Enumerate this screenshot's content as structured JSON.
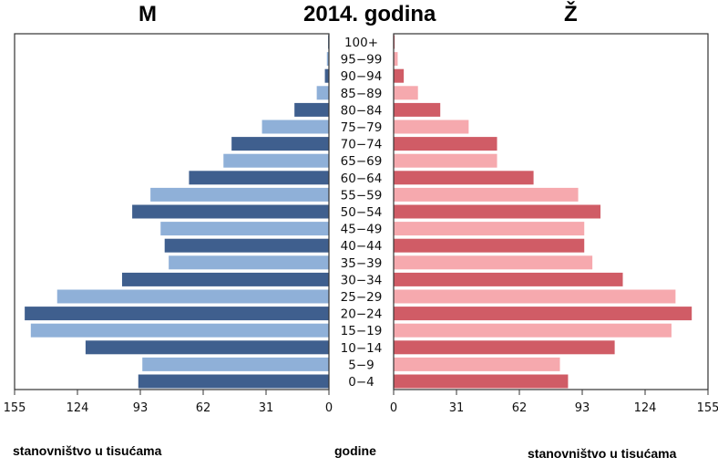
{
  "chart_data": {
    "type": "bar",
    "title": "2014. godina",
    "left_label": "M",
    "right_label": "Ž",
    "ylabel": "godine",
    "xlabel_left": "stanovništvo u tisućama",
    "xlabel_right": "stanovništvo u tisućama",
    "xlim": [
      0,
      155
    ],
    "x_ticks": [
      155,
      124,
      93,
      62,
      31,
      0
    ],
    "x_ticks_right": [
      0,
      31,
      62,
      93,
      124,
      155
    ],
    "categories": [
      "100+",
      "95−99",
      "90−94",
      "85−89",
      "80−84",
      "75−79",
      "70−74",
      "65−69",
      "60−64",
      "55−59",
      "50−54",
      "45−49",
      "40−44",
      "35−39",
      "30−34",
      "25−29",
      "20−24",
      "15−19",
      "10−14",
      "5−9",
      "0−4"
    ],
    "series": [
      {
        "name": "M",
        "values": [
          0.4,
          1,
          2,
          6,
          17,
          33,
          48,
          52,
          69,
          88,
          97,
          83,
          81,
          79,
          102,
          134,
          150,
          147,
          120,
          92,
          94
        ]
      },
      {
        "name": "Ž",
        "values": [
          0.5,
          2,
          5,
          12,
          23,
          37,
          51,
          51,
          69,
          91,
          102,
          94,
          94,
          98,
          113,
          139,
          147,
          137,
          109,
          82,
          86
        ]
      }
    ],
    "colors": {
      "male_dark": "#3f5f8e",
      "male_light": "#8fb0d8",
      "female_dark": "#d05c66",
      "female_light": "#f6a9ae"
    }
  }
}
